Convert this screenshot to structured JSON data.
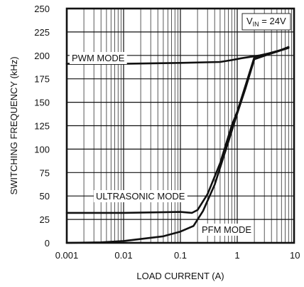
{
  "chart_data": {
    "type": "line",
    "xlabel": "LOAD CURRENT (A)",
    "ylabel": "SWITCHING FREQUENCY (kHz)",
    "x_scale": "log",
    "xlim": [
      0.001,
      10
    ],
    "ylim": [
      0,
      250
    ],
    "x_ticks": [
      "0.001",
      "0.01",
      "0.1",
      "1",
      "10"
    ],
    "y_ticks": [
      "0",
      "25",
      "50",
      "75",
      "100",
      "125",
      "150",
      "175",
      "200",
      "225",
      "250"
    ],
    "grid": true,
    "series": [
      {
        "name": "PWM MODE",
        "x": [
          0.001,
          0.01,
          0.1,
          0.5,
          0.8,
          1.2,
          2.5,
          5,
          8
        ],
        "y": [
          191,
          191,
          192,
          193,
          195,
          197,
          200,
          204,
          209
        ]
      },
      {
        "name": "ULTRASONIC MODE",
        "x": [
          0.001,
          0.01,
          0.1,
          0.16,
          0.2,
          0.3,
          0.5,
          0.8,
          1.0,
          1.4,
          2.0,
          3.5,
          8
        ],
        "y": [
          32,
          32,
          33,
          32,
          35,
          52,
          85,
          125,
          140,
          168,
          198,
          202,
          208
        ]
      },
      {
        "name": "PFM MODE",
        "x": [
          0.001,
          0.004,
          0.01,
          0.05,
          0.1,
          0.17,
          0.25,
          0.4,
          0.7,
          1.0,
          1.4,
          2.0,
          3.5,
          8
        ],
        "y": [
          0,
          0.5,
          2,
          7,
          12,
          18,
          34,
          62,
          108,
          138,
          165,
          196,
          201,
          208
        ]
      }
    ],
    "annotations": {
      "pwm": "PWM MODE",
      "ultrasonic": "ULTRASONIC MODE",
      "pfm": "PFM MODE",
      "vin_prefix": "V",
      "vin_sub": "IN",
      "vin_suffix": " = 24V"
    }
  }
}
